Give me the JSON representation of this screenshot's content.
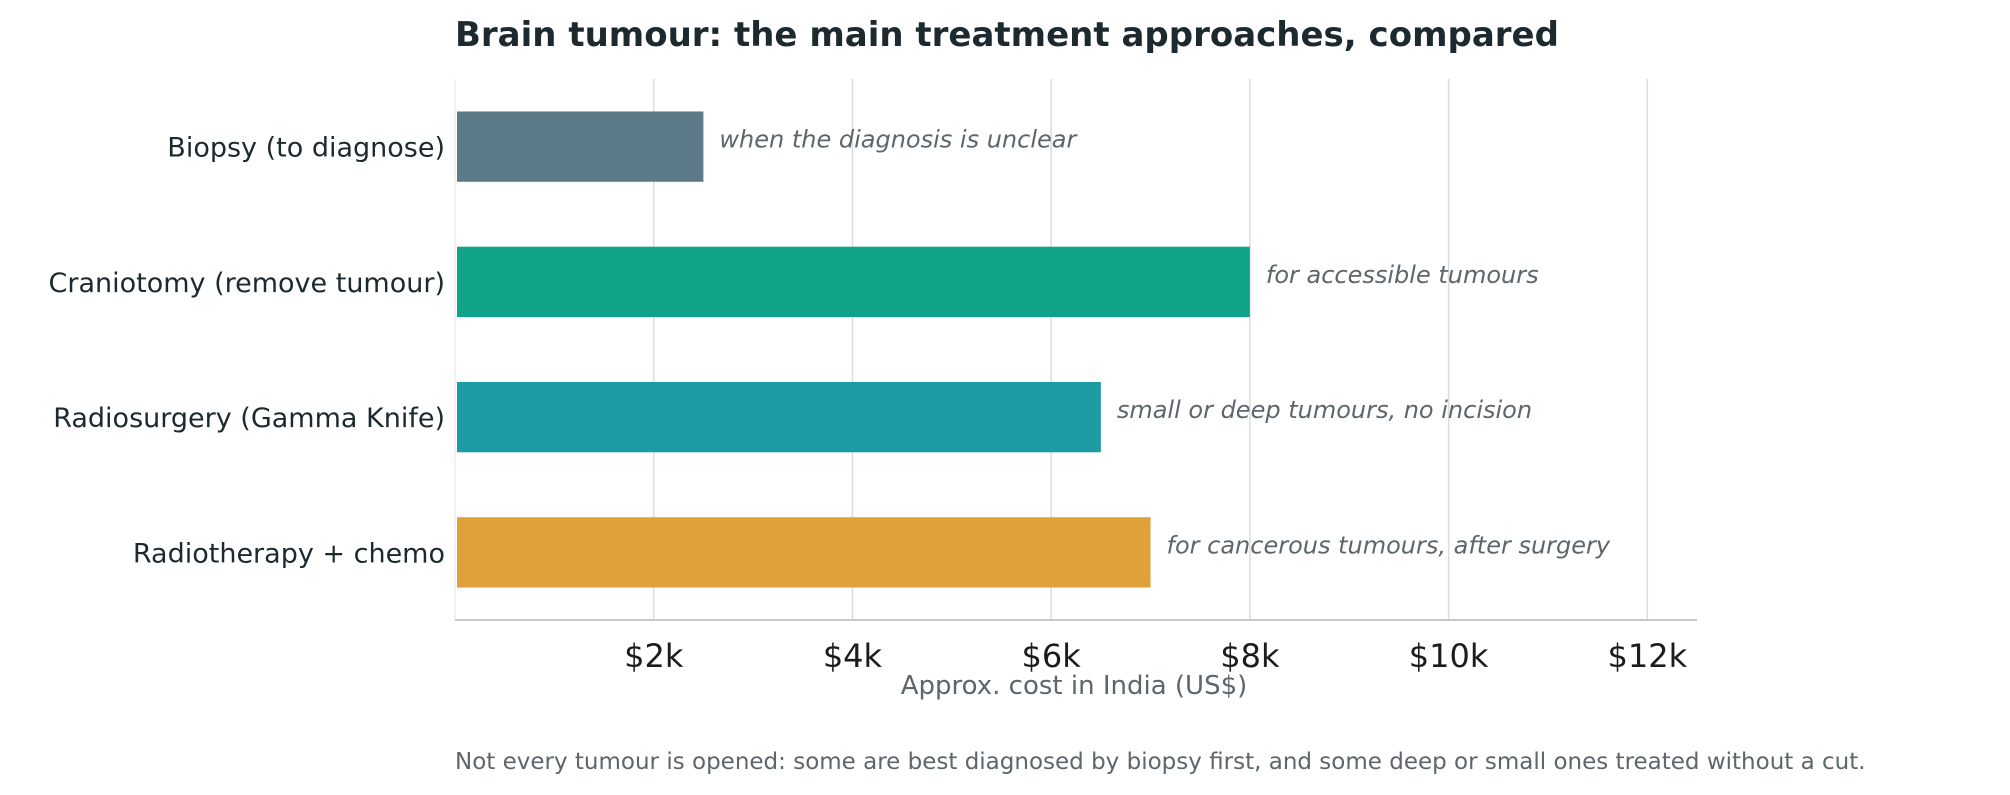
{
  "chart_data": {
    "type": "bar",
    "orientation": "horizontal",
    "title": "Brain tumour: the main treatment approaches, compared",
    "xlabel": "Approx. cost in India (US$)",
    "ylabel": "",
    "xlim": [
      0,
      12500
    ],
    "grid": true,
    "xticks": [
      {
        "value": 2000,
        "label": "$2k"
      },
      {
        "value": 4000,
        "label": "$4k"
      },
      {
        "value": 6000,
        "label": "$6k"
      },
      {
        "value": 8000,
        "label": "$8k"
      },
      {
        "value": 10000,
        "label": "$10k"
      },
      {
        "value": 12000,
        "label": "$12k"
      }
    ],
    "categories": [
      "Biopsy (to diagnose)",
      "Craniotomy (remove tumour)",
      "Radiosurgery (Gamma Knife)",
      "Radiotherapy + chemo"
    ],
    "values": [
      2500,
      8000,
      6500,
      7000
    ],
    "annotations": [
      "when the diagnosis is unclear",
      "for accessible tumours",
      "small or deep tumours, no incision",
      "for cancerous tumours, after surgery"
    ],
    "colors": [
      "#5c7a87",
      "#0fa388",
      "#1c9ba3",
      "#e0a03a"
    ],
    "footnote": "Not every tumour is opened: some are best diagnosed by biopsy first, and some deep or small ones treated without a cut."
  }
}
